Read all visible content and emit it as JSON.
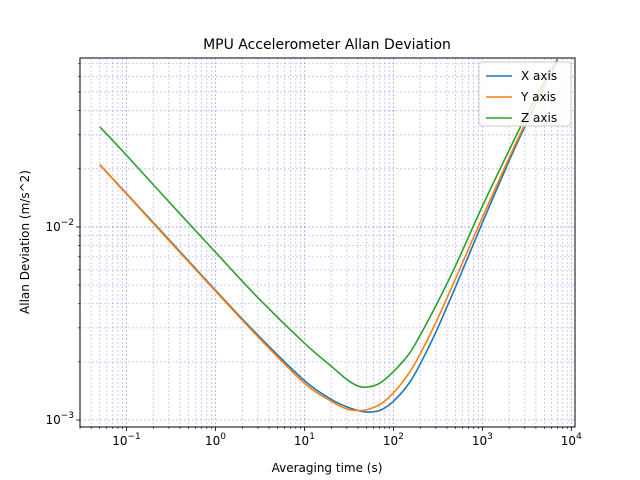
{
  "chart_data": {
    "type": "line",
    "title": "MPU Accelerometer Allan Deviation",
    "xlabel": "Averaging time (s)",
    "ylabel": "Allan Deviation (m/s^2)",
    "xscale": "log",
    "yscale": "log",
    "xlim": [
      0.03,
      11000
    ],
    "ylim": [
      0.00092,
      0.075
    ],
    "grid": true,
    "grid_color": "#0000ff",
    "legend_position": "top-right",
    "x_ticks": [
      {
        "value": 0.1,
        "base": "10",
        "exp": "−1"
      },
      {
        "value": 1,
        "base": "10",
        "exp": "0"
      },
      {
        "value": 10,
        "base": "10",
        "exp": "1"
      },
      {
        "value": 100,
        "base": "10",
        "exp": "2"
      },
      {
        "value": 1000,
        "base": "10",
        "exp": "3"
      },
      {
        "value": 10000,
        "base": "10",
        "exp": "4"
      }
    ],
    "y_ticks": [
      {
        "value": 0.001,
        "base": "10",
        "exp": "−3"
      },
      {
        "value": 0.01,
        "base": "10",
        "exp": "−2"
      }
    ],
    "series": [
      {
        "name": "X axis",
        "color": "#1f77b4",
        "x": [
          0.05,
          0.1,
          0.3,
          1,
          3,
          10,
          20,
          30,
          40,
          50,
          70,
          100,
          150,
          200,
          300,
          500,
          1000,
          2000,
          3000,
          5000,
          7000
        ],
        "y": [
          0.021,
          0.0149,
          0.0086,
          0.0047,
          0.00275,
          0.0016,
          0.00128,
          0.00117,
          0.00112,
          0.0011,
          0.00112,
          0.00125,
          0.00155,
          0.00195,
          0.00285,
          0.0049,
          0.0105,
          0.022,
          0.033,
          0.054,
          0.072
        ]
      },
      {
        "name": "Y axis",
        "color": "#ff7f0e",
        "x": [
          0.05,
          0.1,
          0.3,
          1,
          3,
          10,
          20,
          30,
          40,
          50,
          70,
          100,
          150,
          200,
          300,
          500,
          1000,
          2000,
          3000,
          5000,
          7000
        ],
        "y": [
          0.021,
          0.0148,
          0.0085,
          0.00465,
          0.0027,
          0.00155,
          0.00125,
          0.00114,
          0.00112,
          0.00113,
          0.0012,
          0.00138,
          0.00175,
          0.0022,
          0.0032,
          0.0054,
          0.0112,
          0.0228,
          0.034,
          0.055,
          0.073
        ]
      },
      {
        "name": "Z axis",
        "color": "#2ca02c",
        "x": [
          0.05,
          0.1,
          0.3,
          1,
          3,
          10,
          20,
          30,
          40,
          50,
          70,
          100,
          150,
          200,
          300,
          500,
          1000,
          2000,
          3000,
          5000,
          7000
        ],
        "y": [
          0.033,
          0.0235,
          0.0135,
          0.0074,
          0.0043,
          0.0025,
          0.0019,
          0.00162,
          0.0015,
          0.00148,
          0.00155,
          0.00178,
          0.0022,
          0.00275,
          0.0039,
          0.0063,
          0.0128,
          0.025,
          0.0365,
          0.057,
          0.074
        ]
      }
    ]
  }
}
